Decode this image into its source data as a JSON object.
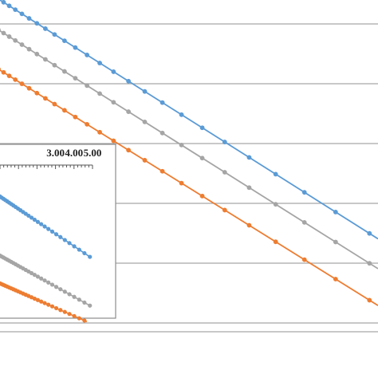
{
  "colors": {
    "blue": "#5b9bd5",
    "gray": "#a5a5a5",
    "orange": "#ed7d31",
    "grid": "#a6a6a6",
    "inset_border": "#8c8c8c"
  },
  "chart_data": [
    {
      "type": "line",
      "role": "main",
      "grid": true,
      "series": [
        {
          "color": "blue",
          "x": [
            0,
            474
          ],
          "y": [
            0.0,
            0.6318
          ]
        },
        {
          "color": "gray",
          "x": [
            0,
            474
          ],
          "y": [
            0.0816,
            0.7108
          ]
        },
        {
          "color": "orange",
          "x": [
            0,
            474
          ],
          "y": [
            0.1855,
            0.8082
          ]
        }
      ]
    },
    {
      "type": "line",
      "role": "inset",
      "xlim": [
        0.0,
        5.0
      ],
      "x_tick_labels": [
        "3.00",
        "4.00",
        "5.00"
      ],
      "x_ticks": [
        3.0,
        4.0,
        5.0
      ],
      "series": [
        {
          "color": "blue",
          "x": [
            0.0,
            4.9
          ],
          "y": [
            0.3,
            0.65
          ]
        },
        {
          "color": "gray",
          "x": [
            0.0,
            4.9
          ],
          "y": [
            0.64,
            0.93
          ]
        },
        {
          "color": "orange",
          "x": [
            0.0,
            4.7
          ],
          "y": [
            0.8,
            1.02
          ]
        }
      ]
    }
  ]
}
